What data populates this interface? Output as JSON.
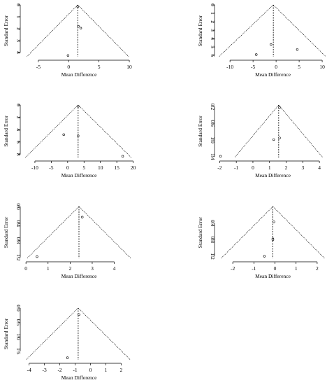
{
  "chart_data": [
    {
      "type": "scatter",
      "subtype": "funnel",
      "xlabel": "Mean Difference",
      "ylabel": "Standard Error",
      "x_ticks": [
        -5,
        0,
        5,
        10
      ],
      "y_ticks": [
        0,
        1,
        2,
        3,
        4
      ],
      "y_reversed": true,
      "xlim": [
        -7.4,
        10.8
      ],
      "ylim": [
        0,
        4.35
      ],
      "pooled_estimate": 1.5,
      "funnel_base": [
        -6.9,
        9.9
      ],
      "points": [
        {
          "x": 1.5,
          "se": 0.15
        },
        {
          "x": 1.6,
          "se": 1.8
        },
        {
          "x": 2.0,
          "se": 1.95
        },
        {
          "x": -0.1,
          "se": 4.25
        }
      ]
    },
    {
      "type": "scatter",
      "subtype": "funnel",
      "xlabel": "Mean Difference",
      "ylabel": "Standard Error",
      "x_ticks": [
        -10,
        -5,
        0,
        5,
        10
      ],
      "y_ticks": [
        0,
        1,
        2,
        3,
        4,
        5,
        6
      ],
      "y_reversed": true,
      "xlim": [
        -12.6,
        11.2
      ],
      "ylim": [
        0,
        6.15
      ],
      "pooled_estimate": -0.6,
      "funnel_base": [
        -12.4,
        10.8
      ],
      "points": [
        {
          "x": -1.1,
          "se": 4.7
        },
        {
          "x": 4.6,
          "se": 5.3
        },
        {
          "x": -4.3,
          "se": 5.9
        }
      ]
    },
    {
      "type": "scatter",
      "subtype": "funnel",
      "xlabel": "Mean Difference",
      "ylabel": "Standard Error",
      "x_ticks": [
        -10,
        -5,
        0,
        5,
        10,
        15,
        20
      ],
      "y_ticks": [
        0,
        2,
        4,
        6,
        8
      ],
      "y_reversed": true,
      "xlim": [
        -13.4,
        20.3
      ],
      "ylim": [
        0,
        8.5
      ],
      "pooled_estimate": 3.2,
      "funnel_base": [
        -12.9,
        19.4
      ],
      "points": [
        {
          "x": 3.2,
          "se": 0.2
        },
        {
          "x": -1.2,
          "se": 4.8
        },
        {
          "x": 3.2,
          "se": 5.0
        },
        {
          "x": 16.8,
          "se": 8.3
        }
      ]
    },
    {
      "type": "scatter",
      "subtype": "funnel",
      "xlabel": "Mean Difference",
      "ylabel": "Standard Error",
      "x_ticks": [
        -2,
        -1,
        0,
        1,
        2,
        3,
        4
      ],
      "y_ticks": [
        0.2,
        0.6,
        1.0,
        1.4
      ],
      "y_reversed": true,
      "xlim": [
        -2.1,
        4.5
      ],
      "ylim": [
        0.16,
        1.42
      ],
      "pooled_estimate": 1.55,
      "funnel_base": [
        -1.1,
        4.2
      ],
      "points": [
        {
          "x": 1.6,
          "se": 0.22
        },
        {
          "x": 1.25,
          "se": 0.99
        },
        {
          "x": 1.6,
          "se": 0.95
        },
        {
          "x": -1.95,
          "se": 1.39
        }
      ]
    },
    {
      "type": "scatter",
      "subtype": "funnel",
      "xlabel": "Mean Difference",
      "ylabel": "Standard Error",
      "x_ticks": [
        0,
        1,
        2,
        3,
        4
      ],
      "y_ticks": [
        0.0,
        0.4,
        0.8,
        1.2
      ],
      "y_reversed": true,
      "xlim": [
        -0.1,
        4.9
      ],
      "ylim": [
        0,
        1.22
      ],
      "pooled_estimate": 2.4,
      "funnel_base": [
        0.05,
        4.75
      ],
      "points": [
        {
          "x": 2.55,
          "se": 0.25
        },
        {
          "x": 0.5,
          "se": 1.18
        }
      ]
    },
    {
      "type": "scatter",
      "subtype": "funnel",
      "xlabel": "Mean Difference",
      "ylabel": "Standard Error",
      "x_ticks": [
        -2,
        -1,
        0,
        1,
        2
      ],
      "y_ticks": [
        0.4,
        0.8,
        1.2
      ],
      "y_reversed": true,
      "xlim": [
        -2.7,
        2.5
      ],
      "ylim": [
        0,
        1.25
      ],
      "pooled_estimate": -0.1,
      "funnel_base": [
        -2.55,
        2.35
      ],
      "points": [
        {
          "x": -0.05,
          "se": 0.37
        },
        {
          "x": -0.1,
          "se": 0.78
        },
        {
          "x": -0.1,
          "se": 0.8
        },
        {
          "x": -0.5,
          "se": 1.2
        }
      ]
    },
    {
      "type": "scatter",
      "subtype": "funnel",
      "xlabel": "Mean Difference",
      "ylabel": "Standard Error",
      "x_ticks": [
        -4,
        -3,
        -2,
        -1,
        0,
        1,
        2
      ],
      "y_ticks": [
        0.0,
        0.5,
        1.0,
        1.5
      ],
      "y_reversed": true,
      "xlim": [
        -4.35,
        2.85
      ],
      "ylim": [
        0,
        1.8
      ],
      "pooled_estimate": -0.8,
      "funnel_base": [
        -4.2,
        2.6
      ],
      "points": [
        {
          "x": -0.75,
          "se": 0.23
        },
        {
          "x": -1.5,
          "se": 1.73
        }
      ]
    }
  ]
}
